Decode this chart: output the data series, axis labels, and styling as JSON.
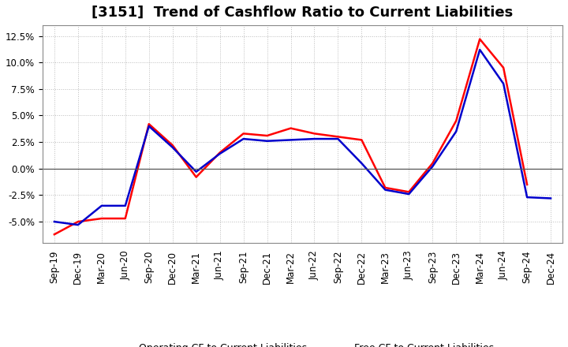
{
  "title": "[3151]  Trend of Cashflow Ratio to Current Liabilities",
  "x_labels": [
    "Sep-19",
    "Dec-19",
    "Mar-20",
    "Jun-20",
    "Sep-20",
    "Dec-20",
    "Mar-21",
    "Jun-21",
    "Sep-21",
    "Dec-21",
    "Mar-22",
    "Jun-22",
    "Sep-22",
    "Dec-22",
    "Mar-23",
    "Jun-23",
    "Sep-23",
    "Dec-23",
    "Mar-24",
    "Jun-24",
    "Sep-24",
    "Dec-24"
  ],
  "operating_cf": [
    -6.2,
    -5.0,
    -4.7,
    -4.7,
    4.2,
    2.2,
    -0.8,
    1.5,
    3.3,
    3.1,
    3.8,
    3.3,
    3.0,
    2.7,
    -1.8,
    -2.2,
    0.5,
    4.5,
    12.2,
    9.5,
    -1.5,
    null
  ],
  "free_cf": [
    -5.0,
    -5.3,
    -3.5,
    -3.5,
    4.0,
    2.0,
    -0.3,
    1.4,
    2.8,
    2.6,
    2.7,
    2.8,
    2.8,
    0.5,
    -2.0,
    -2.4,
    0.2,
    3.5,
    11.2,
    8.0,
    -2.7,
    -2.8
  ],
  "operating_color": "#ff0000",
  "free_color": "#0000cc",
  "ylim": [
    -7.0,
    13.5
  ],
  "yticks": [
    -5.0,
    -2.5,
    0.0,
    2.5,
    5.0,
    7.5,
    10.0,
    12.5
  ],
  "legend_op": "Operating CF to Current Liabilities",
  "legend_free": "Free CF to Current Liabilities",
  "bg_color": "#ffffff",
  "plot_bg_color": "#ffffff",
  "grid_color": "#aaaaaa",
  "line_width": 1.8,
  "title_fontsize": 13,
  "tick_fontsize": 8.5,
  "legend_fontsize": 9
}
